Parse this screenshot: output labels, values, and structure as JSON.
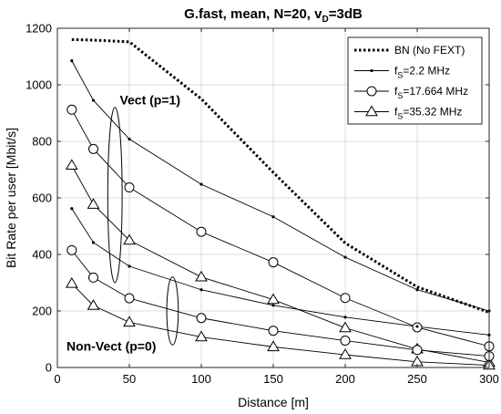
{
  "chart_data": {
    "type": "line",
    "title": "G.fast, mean, N=20, v",
    "title_sub": "D",
    "title_tail": "=3dB",
    "xlabel": "Distance [m]",
    "ylabel": "Bit Rate per user [Mbit/s]",
    "xlim": [
      0,
      300
    ],
    "ylim": [
      0,
      1200
    ],
    "xticks": [
      0,
      50,
      100,
      150,
      200,
      250,
      300
    ],
    "yticks": [
      0,
      200,
      400,
      600,
      800,
      1000,
      1200
    ],
    "grid": true,
    "legend_position": "top-right",
    "legend": [
      {
        "label": "BN (No FEXT)",
        "style": "dotted",
        "marker": "none"
      },
      {
        "label_main": "f",
        "label_sub": "S",
        "label_tail": "=2.2 MHz",
        "style": "solid",
        "marker": "dot"
      },
      {
        "label_main": "f",
        "label_sub": "S",
        "label_tail": "=17.664 MHz",
        "style": "solid",
        "marker": "circle"
      },
      {
        "label_main": "f",
        "label_sub": "S",
        "label_tail": "=35.32 MHz",
        "style": "solid",
        "marker": "triangle"
      }
    ],
    "series": [
      {
        "name": "BN (No FEXT)",
        "style": "dotted",
        "marker": "none",
        "x": [
          10,
          25,
          50,
          100,
          150,
          200,
          250,
          300
        ],
        "y": [
          1160,
          1158,
          1152,
          950,
          690,
          440,
          285,
          195
        ]
      },
      {
        "name": "fS=2.2 MHz",
        "group": "Vect",
        "style": "solid",
        "marker": "dot",
        "x": [
          10,
          25,
          50,
          100,
          150,
          200,
          250,
          300
        ],
        "y": [
          1085,
          945,
          808,
          648,
          533,
          390,
          275,
          200
        ]
      },
      {
        "name": "fS=17.664 MHz",
        "group": "Vect",
        "style": "solid",
        "marker": "circle",
        "x": [
          10,
          25,
          50,
          100,
          150,
          200,
          250,
          300
        ],
        "y": [
          912,
          773,
          637,
          480,
          372,
          246,
          142,
          75
        ]
      },
      {
        "name": "fS=35.32 MHz",
        "group": "Vect",
        "style": "solid",
        "marker": "triangle",
        "x": [
          10,
          25,
          50,
          100,
          150,
          200,
          250,
          300
        ],
        "y": [
          715,
          577,
          450,
          320,
          240,
          140,
          65,
          18
        ]
      },
      {
        "name": "fS=2.2 MHz",
        "group": "Non-Vect",
        "style": "solid",
        "marker": "dot",
        "x": [
          10,
          25,
          50,
          100,
          150,
          200,
          250,
          300
        ],
        "y": [
          562,
          442,
          358,
          275,
          220,
          178,
          145,
          115
        ]
      },
      {
        "name": "fS=17.664 MHz",
        "group": "Non-Vect",
        "style": "solid",
        "marker": "circle",
        "x": [
          10,
          25,
          50,
          100,
          150,
          200,
          250,
          300
        ],
        "y": [
          415,
          318,
          245,
          175,
          130,
          95,
          62,
          40
        ]
      },
      {
        "name": "fS=35.32 MHz",
        "group": "Non-Vect",
        "style": "solid",
        "marker": "triangle",
        "x": [
          10,
          25,
          50,
          100,
          150,
          200,
          250,
          300
        ],
        "y": [
          297,
          219,
          160,
          108,
          73,
          45,
          20,
          8
        ]
      }
    ],
    "annotations": [
      {
        "text": "Vect (p=1)",
        "x": 37,
        "y": 930
      },
      {
        "text": "Non-Vect (p=0)",
        "x": 0,
        "y": 60
      }
    ],
    "ellipses": [
      {
        "cx": 40,
        "cy": 610,
        "rx": 5,
        "ry": 310
      },
      {
        "cx": 80,
        "cy": 200,
        "rx": 4,
        "ry": 120
      }
    ]
  }
}
